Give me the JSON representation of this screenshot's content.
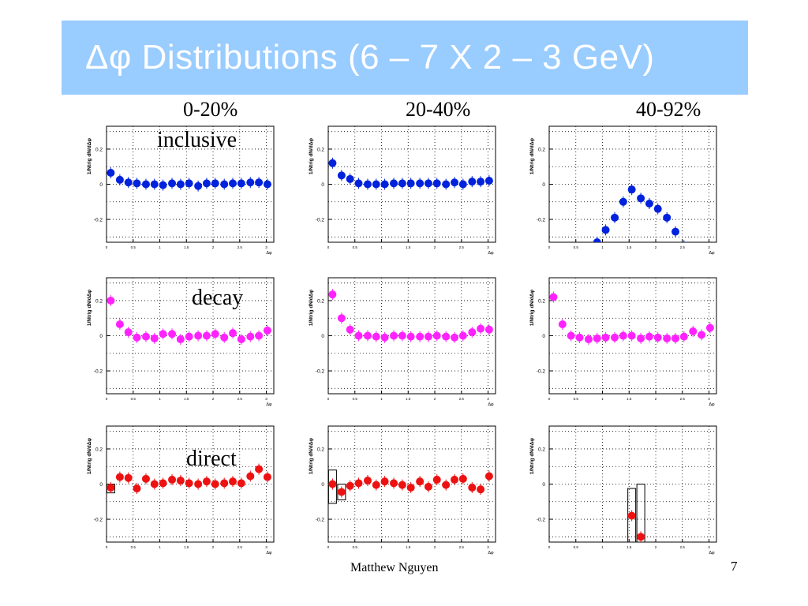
{
  "title": "Δφ Distributions (6 – 7 X 2 – 3 GeV)",
  "columns": [
    "0-20%",
    "20-40%",
    "40-92%"
  ],
  "rows": [
    "inclusive",
    "decay",
    "direct"
  ],
  "footer": "Matthew Nguyen",
  "page_number": "7",
  "colors": {
    "banner": "#99ccff",
    "inclusive": "#0022dd",
    "decay": "#ff22ff",
    "direct": "#ee1111"
  },
  "chart_data": [
    {
      "type": "scatter",
      "row": "inclusive",
      "column": "0-20%",
      "ylabel": "1/Ntrig dN/dΔφ",
      "xlabel": "Δφ",
      "xlim": [
        0,
        3.14
      ],
      "ylim": [
        -0.33,
        0.33
      ],
      "yticks": [
        -0.2,
        0,
        0.2
      ],
      "xticks": [
        0,
        0.5,
        1,
        1.5,
        2,
        2.5,
        3
      ],
      "grid": true,
      "x": [
        0.08,
        0.25,
        0.41,
        0.57,
        0.74,
        0.9,
        1.06,
        1.23,
        1.39,
        1.55,
        1.72,
        1.88,
        2.04,
        2.21,
        2.37,
        2.53,
        2.7,
        2.86,
        3.02
      ],
      "y": [
        0.065,
        0.025,
        0.01,
        0.005,
        0.0,
        0.0,
        -0.005,
        0.005,
        0.0,
        0.005,
        -0.01,
        0.005,
        0.005,
        0.0,
        0.005,
        0.005,
        0.01,
        0.01,
        0.0
      ]
    },
    {
      "type": "scatter",
      "row": "inclusive",
      "column": "20-40%",
      "ylabel": "1/Ntrig dN/dΔφ",
      "xlabel": "Δφ",
      "xlim": [
        0,
        3.14
      ],
      "ylim": [
        -0.33,
        0.33
      ],
      "yticks": [
        -0.2,
        0,
        0.2
      ],
      "xticks": [
        0,
        0.5,
        1,
        1.5,
        2,
        2.5,
        3
      ],
      "grid": true,
      "x": [
        0.08,
        0.25,
        0.41,
        0.57,
        0.74,
        0.9,
        1.06,
        1.23,
        1.39,
        1.55,
        1.72,
        1.88,
        2.04,
        2.21,
        2.37,
        2.53,
        2.7,
        2.86,
        3.02
      ],
      "y": [
        0.12,
        0.05,
        0.03,
        0.005,
        0.0,
        0.0,
        0.0,
        0.005,
        0.005,
        0.005,
        0.005,
        0.005,
        0.005,
        0.0,
        0.01,
        0.0,
        0.015,
        0.015,
        0.02
      ]
    },
    {
      "type": "scatter",
      "row": "inclusive",
      "column": "40-92%",
      "ylabel": "1/Ntrig dN/dΔφ",
      "xlabel": "Δφ",
      "xlim": [
        0,
        3.14
      ],
      "ylim": [
        -0.33,
        0.33
      ],
      "yticks": [
        -0.2,
        0,
        0.2
      ],
      "xticks": [
        0,
        0.5,
        1,
        1.5,
        2,
        2.5,
        3
      ],
      "grid": true,
      "x": [
        0.9,
        1.06,
        1.23,
        1.39,
        1.55,
        1.72,
        1.88,
        2.04,
        2.21,
        2.37,
        2.53
      ],
      "y": [
        -0.33,
        -0.26,
        -0.19,
        -0.1,
        -0.03,
        -0.08,
        -0.11,
        -0.14,
        -0.19,
        -0.27,
        -0.35
      ]
    },
    {
      "type": "scatter",
      "row": "decay",
      "column": "0-20%",
      "ylabel": "1/Ntrig dN/dΔφ",
      "xlabel": "Δφ",
      "xlim": [
        0,
        3.14
      ],
      "ylim": [
        -0.33,
        0.33
      ],
      "yticks": [
        -0.2,
        0,
        0.2
      ],
      "xticks": [
        0,
        0.5,
        1,
        1.5,
        2,
        2.5,
        3
      ],
      "grid": true,
      "x": [
        0.08,
        0.25,
        0.41,
        0.57,
        0.74,
        0.9,
        1.06,
        1.23,
        1.39,
        1.55,
        1.72,
        1.88,
        2.04,
        2.21,
        2.37,
        2.53,
        2.7,
        2.86,
        3.02
      ],
      "y": [
        0.2,
        0.065,
        0.02,
        -0.01,
        -0.005,
        -0.015,
        0.01,
        0.01,
        -0.02,
        -0.005,
        0.0,
        0.0,
        0.01,
        -0.01,
        0.015,
        -0.02,
        -0.005,
        0.0,
        0.03
      ]
    },
    {
      "type": "scatter",
      "row": "decay",
      "column": "20-40%",
      "ylabel": "1/Ntrig dN/dΔφ",
      "xlabel": "Δφ",
      "xlim": [
        0,
        3.14
      ],
      "ylim": [
        -0.33,
        0.33
      ],
      "yticks": [
        -0.2,
        0,
        0.2
      ],
      "xticks": [
        0,
        0.5,
        1,
        1.5,
        2,
        2.5,
        3
      ],
      "grid": true,
      "x": [
        0.08,
        0.25,
        0.41,
        0.57,
        0.74,
        0.9,
        1.06,
        1.23,
        1.39,
        1.55,
        1.72,
        1.88,
        2.04,
        2.21,
        2.37,
        2.53,
        2.7,
        2.86,
        3.02
      ],
      "y": [
        0.235,
        0.1,
        0.035,
        0.0,
        0.0,
        -0.005,
        -0.01,
        0.0,
        0.0,
        -0.005,
        -0.005,
        -0.005,
        0.0,
        -0.005,
        -0.01,
        0.0,
        0.02,
        0.04,
        0.035
      ]
    },
    {
      "type": "scatter",
      "row": "decay",
      "column": "40-92%",
      "ylabel": "1/Ntrig dN/dΔφ",
      "xlabel": "Δφ",
      "xlim": [
        0,
        3.14
      ],
      "ylim": [
        -0.33,
        0.33
      ],
      "yticks": [
        -0.2,
        0,
        0.2
      ],
      "xticks": [
        0,
        0.5,
        1,
        1.5,
        2,
        2.5,
        3
      ],
      "grid": true,
      "x": [
        0.08,
        0.25,
        0.41,
        0.57,
        0.74,
        0.9,
        1.06,
        1.23,
        1.39,
        1.55,
        1.72,
        1.88,
        2.04,
        2.21,
        2.37,
        2.53,
        2.7,
        2.86,
        3.02
      ],
      "y": [
        0.22,
        0.065,
        0.0,
        -0.01,
        -0.02,
        -0.015,
        -0.01,
        -0.01,
        0.0,
        0.0,
        -0.015,
        -0.005,
        -0.01,
        -0.015,
        -0.015,
        -0.005,
        0.025,
        0.005,
        0.045
      ]
    },
    {
      "type": "scatter",
      "row": "direct",
      "column": "0-20%",
      "ylabel": "1/Ntrig dN/dΔφ",
      "xlabel": "Δφ",
      "xlim": [
        0,
        3.14
      ],
      "ylim": [
        -0.33,
        0.33
      ],
      "yticks": [
        -0.2,
        0,
        0.2
      ],
      "xticks": [
        0,
        0.5,
        1,
        1.5,
        2,
        2.5,
        3
      ],
      "grid": true,
      "x": [
        0.08,
        0.25,
        0.41,
        0.57,
        0.74,
        0.9,
        1.06,
        1.23,
        1.39,
        1.55,
        1.72,
        1.88,
        2.04,
        2.21,
        2.37,
        2.53,
        2.7,
        2.86,
        3.02
      ],
      "y": [
        -0.02,
        0.04,
        0.035,
        -0.025,
        0.03,
        0.0,
        0.005,
        0.025,
        0.02,
        0.005,
        0.0,
        0.015,
        0.0,
        0.005,
        0.015,
        0.005,
        0.045,
        0.085,
        0.04
      ],
      "error_boxes": [
        {
          "x": 0.08,
          "ylow": -0.05,
          "yhigh": 0.0
        }
      ]
    },
    {
      "type": "scatter",
      "row": "direct",
      "column": "20-40%",
      "ylabel": "1/Ntrig dN/dΔφ",
      "xlabel": "Δφ",
      "xlim": [
        0,
        3.14
      ],
      "ylim": [
        -0.33,
        0.33
      ],
      "yticks": [
        -0.2,
        0,
        0.2
      ],
      "xticks": [
        0,
        0.5,
        1,
        1.5,
        2,
        2.5,
        3
      ],
      "grid": true,
      "x": [
        0.08,
        0.25,
        0.41,
        0.57,
        0.74,
        0.9,
        1.06,
        1.23,
        1.39,
        1.55,
        1.72,
        1.88,
        2.04,
        2.21,
        2.37,
        2.53,
        2.7,
        2.86,
        3.02
      ],
      "y": [
        0.0,
        -0.045,
        -0.01,
        0.005,
        0.02,
        -0.005,
        0.015,
        0.005,
        -0.005,
        -0.02,
        0.015,
        -0.015,
        0.025,
        -0.005,
        0.025,
        0.03,
        -0.02,
        -0.03,
        0.045
      ],
      "error_boxes": [
        {
          "x": 0.08,
          "ylow": -0.11,
          "yhigh": 0.08
        },
        {
          "x": 0.25,
          "ylow": -0.09,
          "yhigh": 0.0
        }
      ]
    },
    {
      "type": "scatter",
      "row": "direct",
      "column": "40-92%",
      "ylabel": "1/Ntrig dN/dΔφ",
      "xlabel": "Δφ",
      "xlim": [
        0,
        3.14
      ],
      "ylim": [
        -0.33,
        0.33
      ],
      "yticks": [
        -0.2,
        0,
        0.2
      ],
      "xticks": [
        0,
        0.5,
        1,
        1.5,
        2,
        2.5,
        3
      ],
      "grid": true,
      "x": [
        1.55,
        1.72
      ],
      "y": [
        -0.18,
        -0.3
      ],
      "error_boxes": [
        {
          "x": 1.55,
          "ylow": -0.35,
          "yhigh": -0.025
        },
        {
          "x": 1.72,
          "ylow": -0.35,
          "yhigh": 0.0
        }
      ]
    }
  ]
}
